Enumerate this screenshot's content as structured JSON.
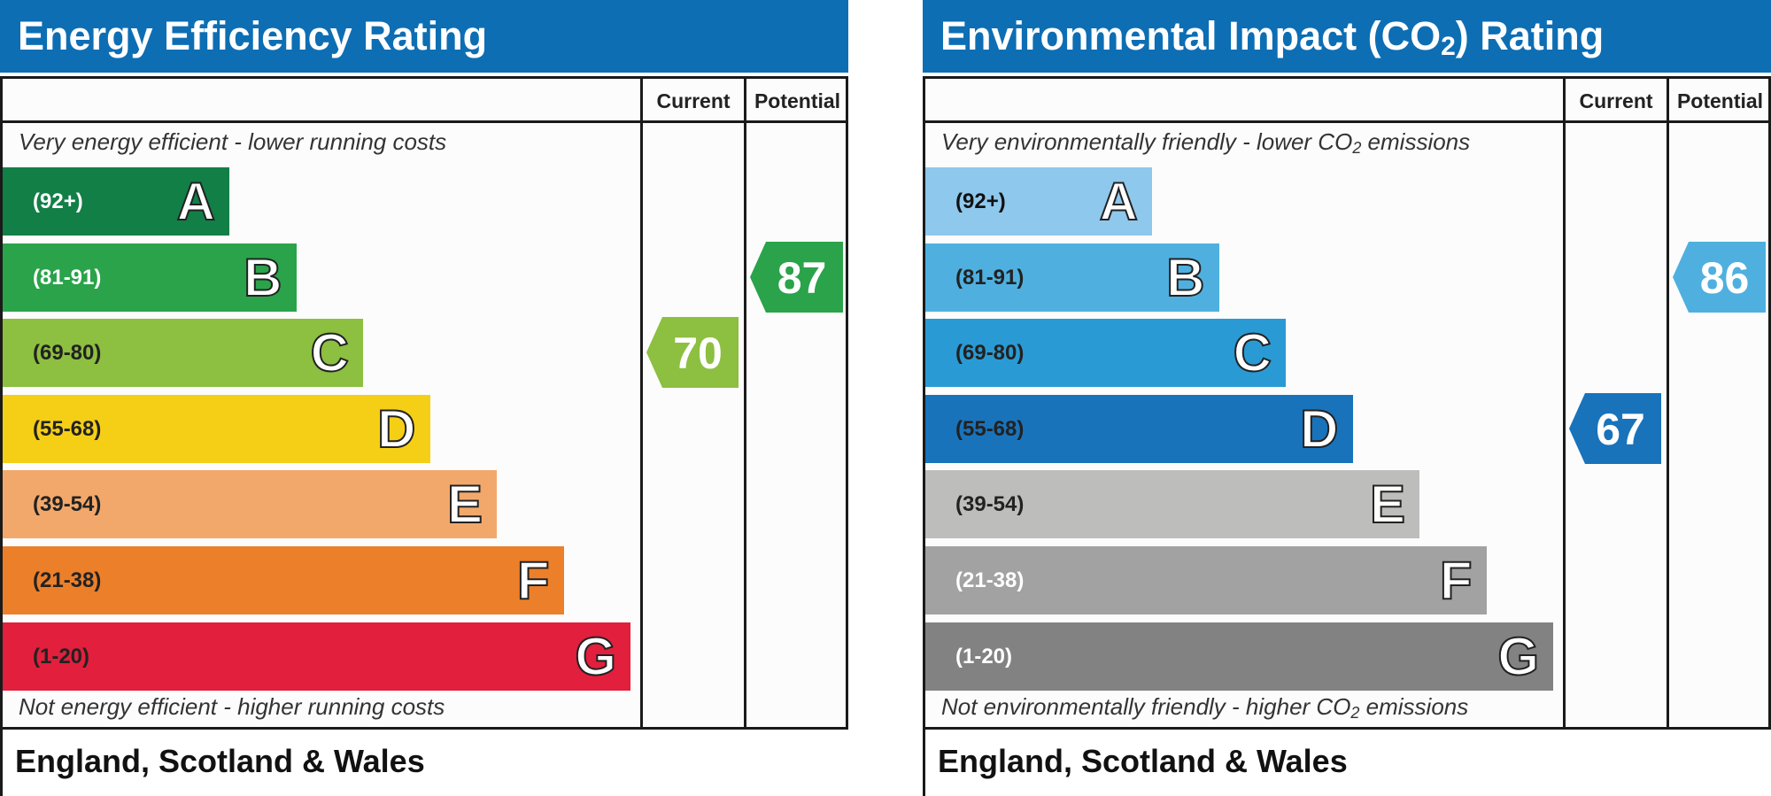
{
  "chart_data": [
    {
      "type": "bar",
      "title": "Energy Efficiency Rating",
      "title_sub": "",
      "title_suffix": "",
      "column_headers": [
        "Current",
        "Potential"
      ],
      "top_caption": "Very energy efficient - lower running costs",
      "top_caption_sub": "",
      "top_caption_suffix": "",
      "bottom_caption": "Not energy efficient - higher running costs",
      "bottom_caption_sub": "",
      "bottom_caption_suffix": "",
      "footer": "England, Scotland & Wales",
      "bands": [
        {
          "letter": "A",
          "range": "(92+)",
          "min": 92,
          "max": 100,
          "color": "#127f47",
          "text_color": "#ffffff"
        },
        {
          "letter": "B",
          "range": "(81-91)",
          "min": 81,
          "max": 91,
          "color": "#2aa34a",
          "text_color": "#ffffff"
        },
        {
          "letter": "C",
          "range": "(69-80)",
          "min": 69,
          "max": 80,
          "color": "#8dbf40",
          "text_color": "#222222"
        },
        {
          "letter": "D",
          "range": "(55-68)",
          "min": 55,
          "max": 68,
          "color": "#f5cf16",
          "text_color": "#222222"
        },
        {
          "letter": "E",
          "range": "(39-54)",
          "min": 39,
          "max": 54,
          "color": "#f2a86b",
          "text_color": "#222222"
        },
        {
          "letter": "F",
          "range": "(21-38)",
          "min": 21,
          "max": 38,
          "color": "#ec7f29",
          "text_color": "#222222"
        },
        {
          "letter": "G",
          "range": "(1-20)",
          "min": 1,
          "max": 20,
          "color": "#e21f3c",
          "text_color": "#222222"
        }
      ],
      "current": {
        "value": 70,
        "band": "C",
        "color": "#8dbf40"
      },
      "potential": {
        "value": 87,
        "band": "B",
        "color": "#2aa34a"
      }
    },
    {
      "type": "bar",
      "title": "Environmental Impact (CO",
      "title_sub": "2",
      "title_suffix": ") Rating",
      "column_headers": [
        "Current",
        "Potential"
      ],
      "top_caption": "Very environmentally friendly - lower CO",
      "top_caption_sub": "2",
      "top_caption_suffix": " emissions",
      "bottom_caption": "Not environmentally friendly - higher CO",
      "bottom_caption_sub": "2",
      "bottom_caption_suffix": " emissions",
      "footer": "England, Scotland & Wales",
      "bands": [
        {
          "letter": "A",
          "range": "(92+)",
          "min": 92,
          "max": 100,
          "color": "#8ec8ec",
          "text_color": "#111111"
        },
        {
          "letter": "B",
          "range": "(81-91)",
          "min": 81,
          "max": 91,
          "color": "#4fb0e0",
          "text_color": "#222222"
        },
        {
          "letter": "C",
          "range": "(69-80)",
          "min": 69,
          "max": 80,
          "color": "#2a9ad4",
          "text_color": "#222222"
        },
        {
          "letter": "D",
          "range": "(55-68)",
          "min": 55,
          "max": 68,
          "color": "#1973bb",
          "text_color": "#222222"
        },
        {
          "letter": "E",
          "range": "(39-54)",
          "min": 39,
          "max": 54,
          "color": "#bdbdbb",
          "text_color": "#222222"
        },
        {
          "letter": "F",
          "range": "(21-38)",
          "min": 21,
          "max": 38,
          "color": "#a2a2a2",
          "text_color": "#ffffff"
        },
        {
          "letter": "G",
          "range": "(1-20)",
          "min": 1,
          "max": 20,
          "color": "#828282",
          "text_color": "#ffffff"
        }
      ],
      "current": {
        "value": 67,
        "band": "D",
        "color": "#1973bb"
      },
      "potential": {
        "value": 86,
        "band": "B",
        "color": "#4fb0e0"
      }
    }
  ]
}
